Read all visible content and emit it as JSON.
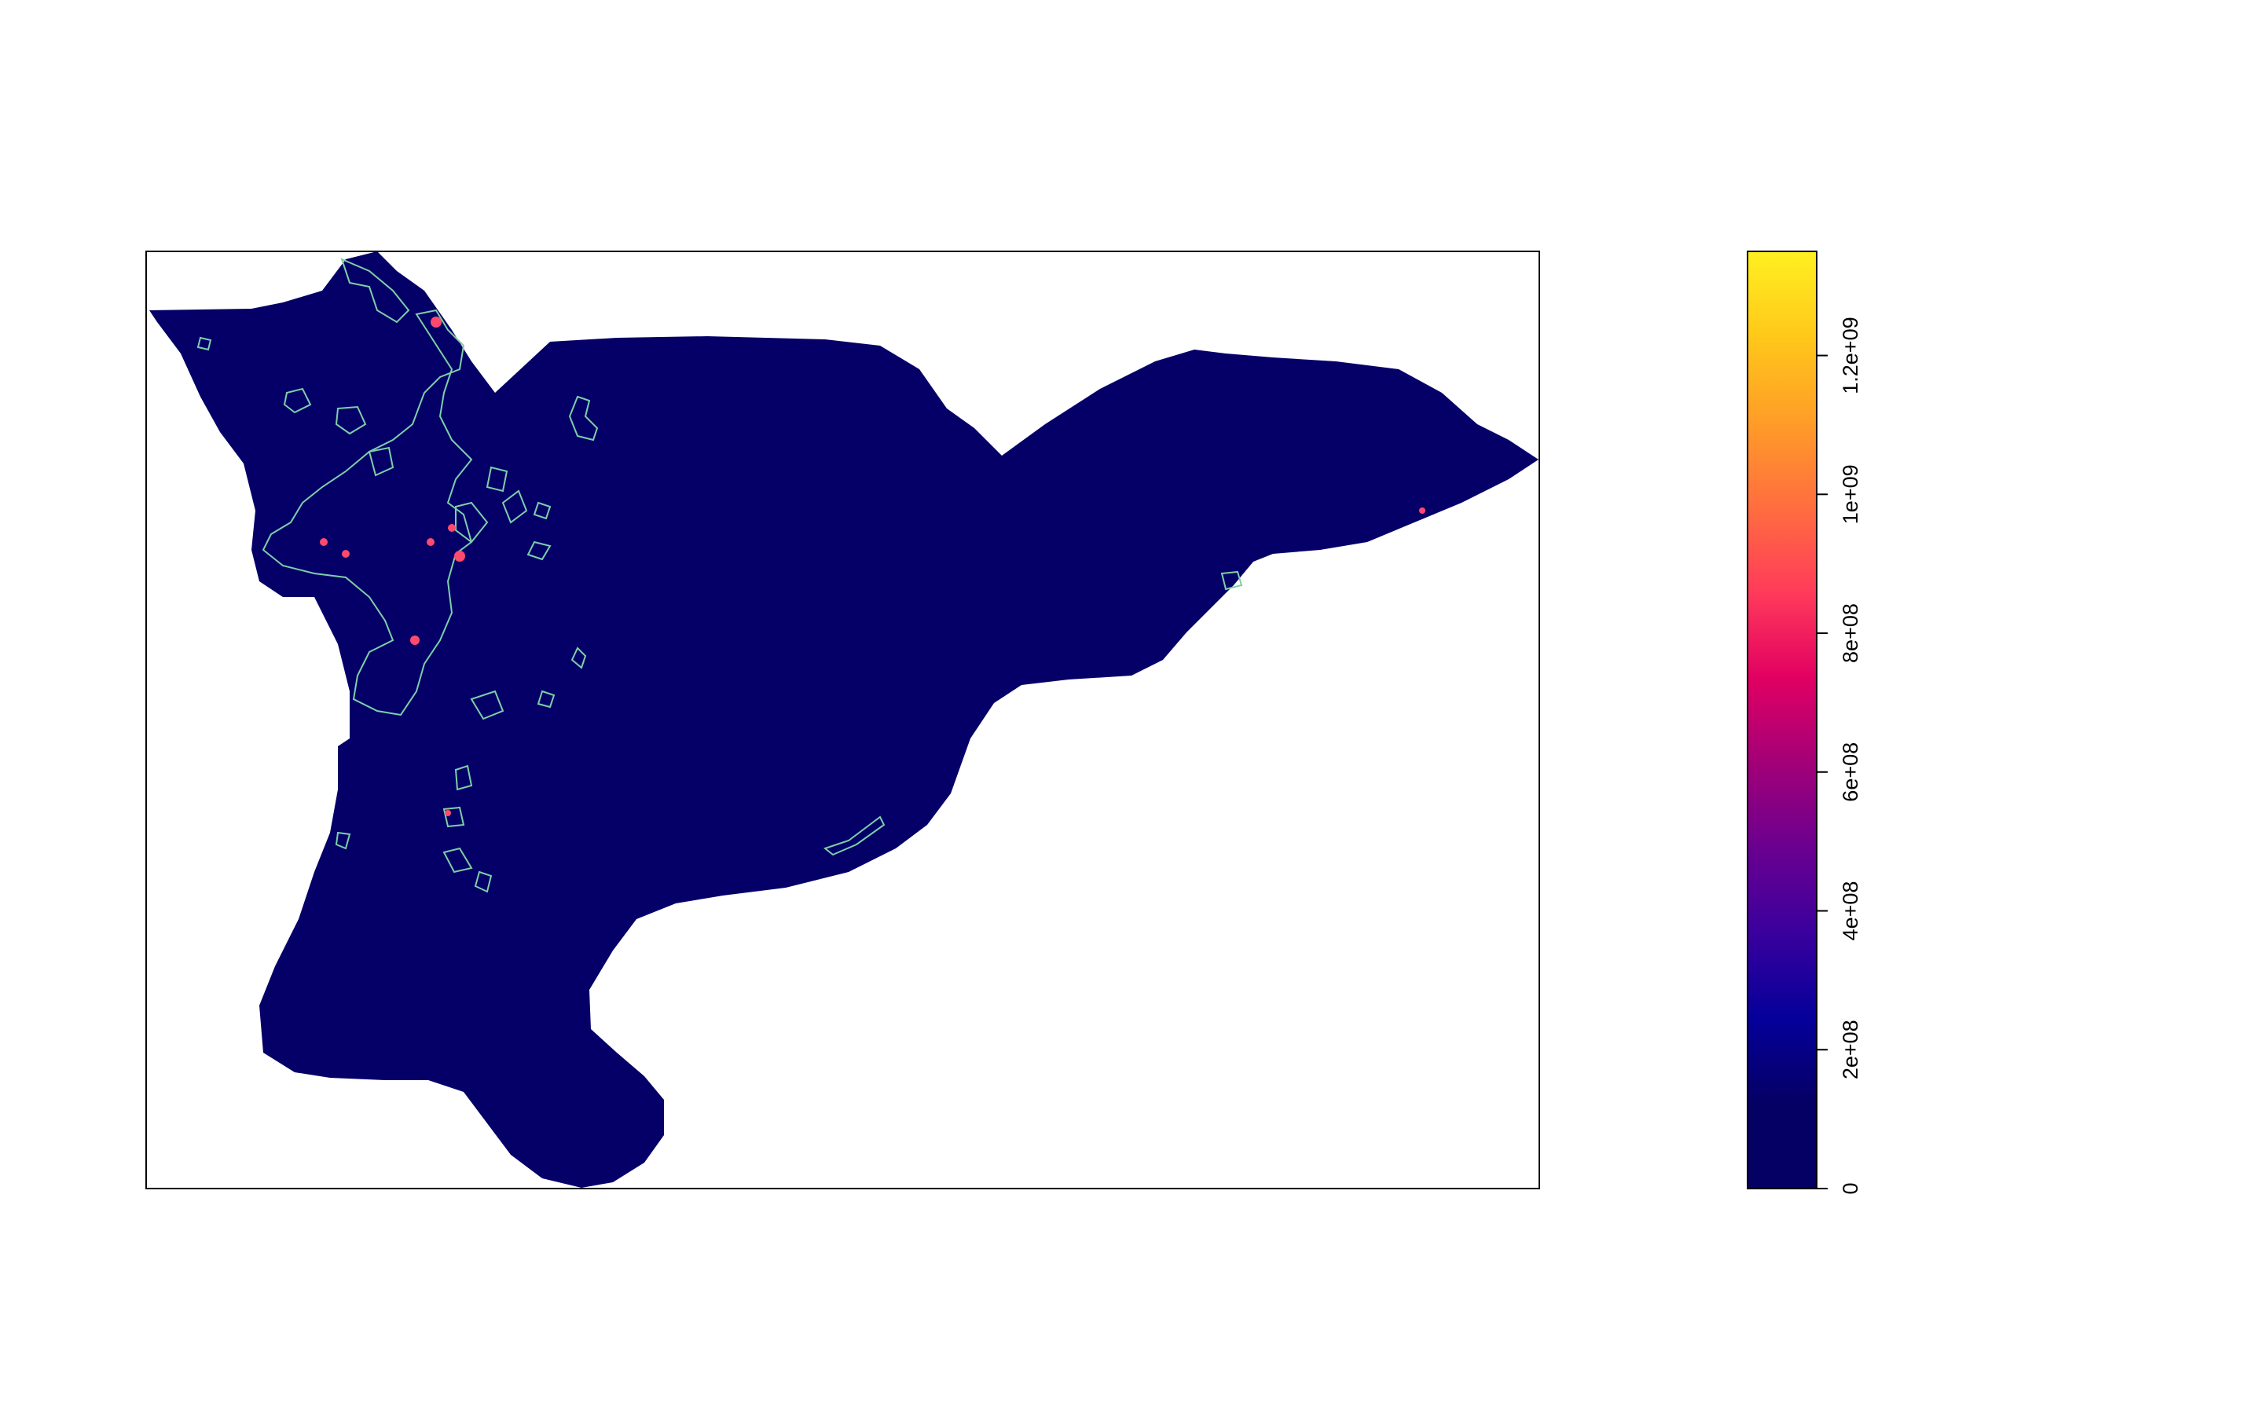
{
  "plot": {
    "fill_color": "#040068",
    "contour_color": "#7ecfa8",
    "hotspot_color": "#ff4a6e",
    "frame_color": "#000000"
  },
  "legend": {
    "min": 0,
    "max": 1350000000,
    "colors": [
      "#050064",
      "#050064",
      "#05009a",
      "#3a009d",
      "#6a0090",
      "#a30078",
      "#e20062",
      "#ff3b5a",
      "#ff6e3f",
      "#ff9d28",
      "#ffc81a",
      "#fff021"
    ],
    "ticks": [
      {
        "value": 0,
        "label": "0"
      },
      {
        "value": 200000000,
        "label": "2e+08"
      },
      {
        "value": 400000000,
        "label": "4e+08"
      },
      {
        "value": 600000000,
        "label": "6e+08"
      },
      {
        "value": 800000000,
        "label": "8e+08"
      },
      {
        "value": 1000000000,
        "label": "1e+09"
      },
      {
        "value": 1200000000,
        "label": "1.2e+09"
      }
    ]
  }
}
